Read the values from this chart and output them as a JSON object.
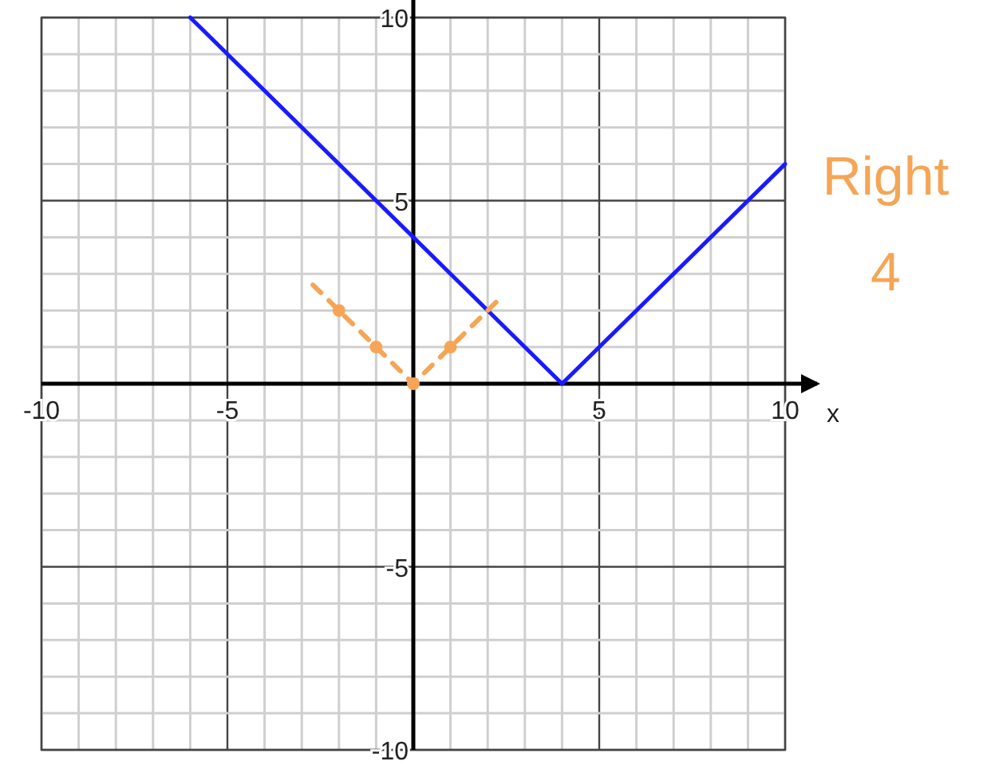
{
  "chart_data": {
    "type": "line",
    "xlabel": "x",
    "x": [
      -6,
      4,
      10
    ],
    "series": [
      {
        "color": "#1a1aff",
        "values": [
          10,
          0,
          6
        ],
        "line_style": "solid",
        "marker": "none"
      },
      {
        "color": "#f5a555",
        "x": [
          -2.7,
          -2,
          -1,
          0,
          1,
          2.3
        ],
        "values": [
          2.7,
          2,
          1,
          0,
          1,
          2.3
        ],
        "line_style": "dashed",
        "marker": "circle"
      }
    ],
    "xlim": [
      -10,
      10
    ],
    "ylim": [
      -10,
      10
    ],
    "xticks": [
      -10,
      {
        "value": -9,
        "label": null
      },
      {
        "value": -8,
        "label": null
      },
      {
        "value": -7,
        "label": null
      },
      {
        "value": -6,
        "label": null
      },
      -5,
      {
        "value": -4,
        "label": null
      },
      {
        "value": -3,
        "label": null
      },
      {
        "value": -2,
        "label": null
      },
      {
        "value": -1,
        "label": null
      },
      {
        "value": 0,
        "label": null
      },
      {
        "value": 1,
        "label": null
      },
      {
        "value": 2,
        "label": null
      },
      {
        "value": 3,
        "label": null
      },
      {
        "value": 4,
        "label": null
      },
      5,
      {
        "value": 6,
        "label": null
      },
      {
        "value": 7,
        "label": null
      },
      {
        "value": 8,
        "label": null
      },
      {
        "value": 9,
        "label": null
      },
      10
    ],
    "yticks": [
      -10,
      {
        "value": -9,
        "label": null
      },
      {
        "value": -8,
        "label": null
      },
      {
        "value": -7,
        "label": null
      },
      {
        "value": -6,
        "label": null
      },
      -5,
      {
        "value": -4,
        "label": null
      },
      {
        "value": -3,
        "label": null
      },
      {
        "value": -2,
        "label": null
      },
      {
        "value": -1,
        "label": null
      },
      {
        "value": 0,
        "label": null
      },
      {
        "value": 1,
        "label": null
      },
      {
        "value": 2,
        "label": null
      },
      {
        "value": 3,
        "label": null
      },
      {
        "value": 4,
        "label": null
      },
      5,
      {
        "value": 6,
        "label": null
      },
      {
        "value": 7,
        "label": null
      },
      {
        "value": 8,
        "label": null
      },
      {
        "value": 9,
        "label": null
      },
      10
    ],
    "grid": true,
    "annotations": [
      "Right 4"
    ]
  }
}
